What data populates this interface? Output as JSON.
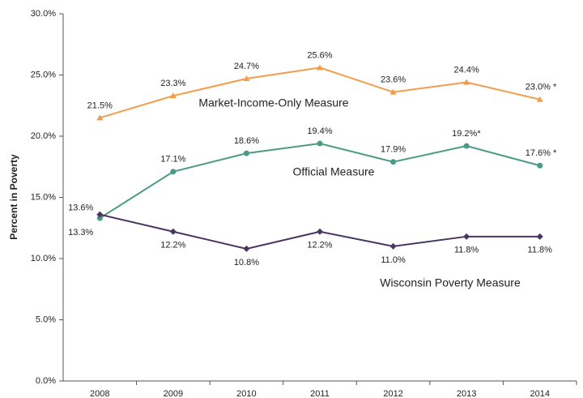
{
  "chart_data": {
    "type": "line",
    "y_label": "Percent in Poverty",
    "categories": [
      "2008",
      "2009",
      "2010",
      "2011",
      "2012",
      "2013",
      "2014"
    ],
    "ylim": [
      0,
      30
    ],
    "yticks": [
      {
        "value": 0,
        "label": "0.0%"
      },
      {
        "value": 5,
        "label": "5.0%"
      },
      {
        "value": 10,
        "label": "10.0%"
      },
      {
        "value": 15,
        "label": "15.0%"
      },
      {
        "value": 20,
        "label": "20.0%"
      },
      {
        "value": 25,
        "label": "25.0%"
      },
      {
        "value": 30,
        "label": "30.0%"
      }
    ],
    "series": [
      {
        "name": "Market-Income-Only Measure",
        "color": "#f39c4a",
        "marker": "triangle",
        "values": [
          21.5,
          23.3,
          24.7,
          25.6,
          23.6,
          24.4,
          23.0
        ],
        "value_labels": [
          "21.5%",
          "23.3%",
          "24.7%",
          "25.6%",
          "23.6%",
          "24.4%",
          "23.0% *"
        ]
      },
      {
        "name": "Official Measure",
        "color": "#4b9a84",
        "marker": "circle",
        "values": [
          13.3,
          17.1,
          18.6,
          19.4,
          17.9,
          19.2,
          17.6
        ],
        "value_labels": [
          "13.3%",
          "17.1%",
          "18.6%",
          "19.4%",
          "17.9%",
          "19.2%*",
          "17.6% *"
        ]
      },
      {
        "name": "Wisconsin Poverty Measure",
        "color": "#4a3560",
        "marker": "diamond",
        "values": [
          13.6,
          12.2,
          10.8,
          12.2,
          11.0,
          11.8,
          11.8
        ],
        "value_labels": [
          "13.6%",
          "12.2%",
          "10.8%",
          "12.2%",
          "11.0%",
          "11.8%",
          "11.8%"
        ]
      }
    ]
  }
}
